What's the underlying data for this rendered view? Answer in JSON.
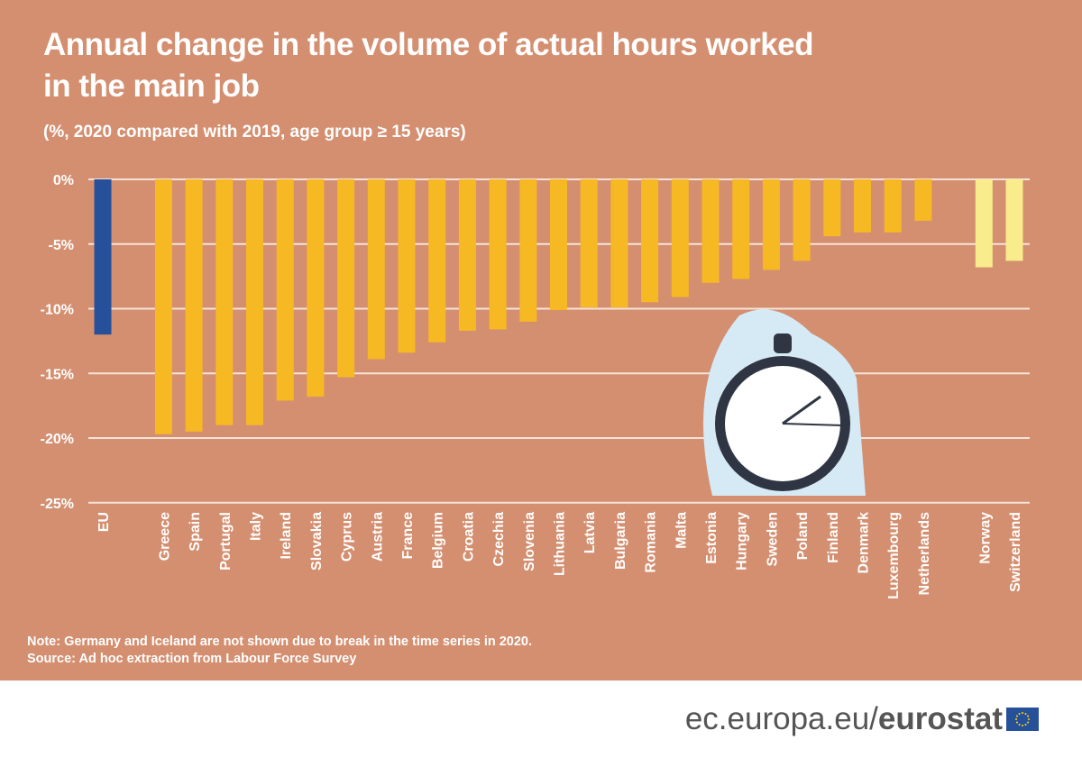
{
  "chart_data": {
    "type": "bar",
    "title": "Annual change in the volume of actual hours worked in the main job",
    "title_lines": [
      "Annual change in the volume of actual hours worked",
      "in the main job"
    ],
    "subtitle": "(%, 2020 compared with 2019, age group ≥ 15 years)",
    "xlabel": "",
    "ylabel": "",
    "ylim": [
      -25,
      0
    ],
    "yticks": [
      0,
      -5,
      -10,
      -15,
      -20,
      -25
    ],
    "ytick_labels": [
      "0%",
      "-5%",
      "-10%",
      "-15%",
      "-20%",
      "-25%"
    ],
    "grid": true,
    "categories": [
      "EU",
      "Greece",
      "Spain",
      "Portugal",
      "Italy",
      "Ireland",
      "Slovakia",
      "Cyprus",
      "Austria",
      "France",
      "Belgium",
      "Croatia",
      "Czechia",
      "Slovenia",
      "Lithuania",
      "Latvia",
      "Bulgaria",
      "Romania",
      "Malta",
      "Estonia",
      "Hungary",
      "Sweden",
      "Poland",
      "Finland",
      "Denmark",
      "Luxembourg",
      "Netherlands",
      "Norway",
      "Switzerland"
    ],
    "values": [
      -12.0,
      -19.7,
      -19.5,
      -19.0,
      -19.0,
      -17.1,
      -16.8,
      -15.3,
      -13.9,
      -13.4,
      -12.6,
      -11.7,
      -11.6,
      -11.0,
      -10.1,
      -9.9,
      -9.9,
      -9.5,
      -9.1,
      -8.0,
      -7.7,
      -7.0,
      -6.3,
      -4.4,
      -4.1,
      -4.1,
      -3.2,
      -6.8,
      -6.3
    ],
    "groups": [
      "eu",
      "member",
      "member",
      "member",
      "member",
      "member",
      "member",
      "member",
      "member",
      "member",
      "member",
      "member",
      "member",
      "member",
      "member",
      "member",
      "member",
      "member",
      "member",
      "member",
      "member",
      "member",
      "member",
      "member",
      "member",
      "member",
      "member",
      "efta",
      "efta"
    ],
    "colors": {
      "eu": "#27509B",
      "member": "#F7B923",
      "efta": "#F8EC8C",
      "background": "#D48F70"
    }
  },
  "notes": {
    "note": "Note: Germany and Iceland are not shown due to break in the time series in 2020.",
    "source": "Source: Ad hoc extraction from Labour Force Survey"
  },
  "footer": {
    "url_prefix": "ec.europa.eu/",
    "brand": "eurostat",
    "logo_icon": "eu-flag-icon"
  }
}
